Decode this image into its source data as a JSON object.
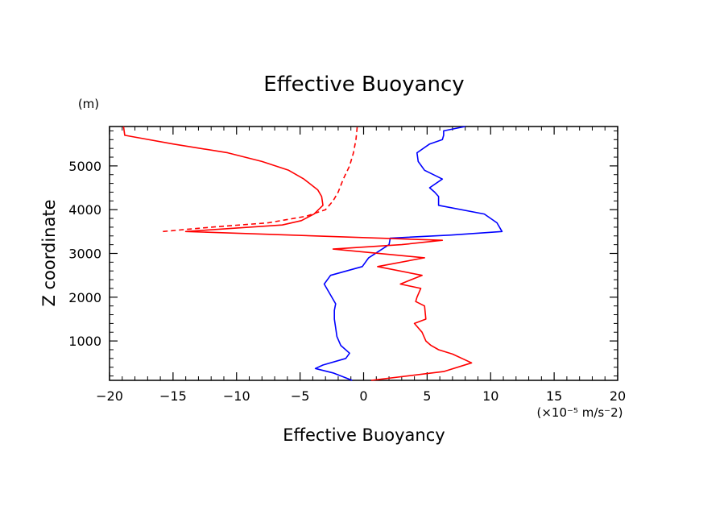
{
  "chart_data": {
    "type": "line",
    "title": "Effective Buoyancy",
    "xlabel": "Effective Buoyancy",
    "ylabel": "Z coordinate",
    "x_unit": "(×10⁻⁵ m/s⁻2)",
    "y_unit": "(m)",
    "xlim": [
      -20,
      20
    ],
    "ylim": [
      100,
      5900
    ],
    "x_ticks": [
      -20,
      -15,
      -10,
      -5,
      0,
      5,
      10,
      15,
      20
    ],
    "x_tick_labels": [
      "−20",
      "−15",
      "−10",
      "−5",
      "0",
      "5",
      "10",
      "15",
      "20"
    ],
    "y_ticks": [
      1000,
      2000,
      3000,
      4000,
      5000
    ],
    "y_tick_labels": [
      "1000",
      "2000",
      "3000",
      "4000",
      "5000"
    ],
    "grid": false,
    "series": [
      {
        "color": "#0000ff",
        "dash": "solid",
        "points": [
          [
            -0.9,
            100
          ],
          [
            -2.4,
            270
          ],
          [
            -3.8,
            370
          ],
          [
            -3.2,
            450
          ],
          [
            -1.4,
            600
          ],
          [
            -1.1,
            720
          ],
          [
            -1.8,
            900
          ],
          [
            -2.1,
            1100
          ],
          [
            -2.2,
            1300
          ],
          [
            -2.3,
            1500
          ],
          [
            -2.3,
            1700
          ],
          [
            -2.2,
            1850
          ],
          [
            -3.1,
            2300
          ],
          [
            -2.6,
            2500
          ],
          [
            -0.1,
            2700
          ],
          [
            0.4,
            2900
          ],
          [
            2.0,
            3200
          ],
          [
            2.1,
            3350
          ],
          [
            6.9,
            3420
          ],
          [
            10.9,
            3500
          ],
          [
            10.5,
            3700
          ],
          [
            9.5,
            3900
          ],
          [
            5.9,
            4100
          ],
          [
            5.9,
            4300
          ],
          [
            5.6,
            4400
          ],
          [
            5.2,
            4500
          ],
          [
            6.2,
            4700
          ],
          [
            4.8,
            4900
          ],
          [
            4.3,
            5100
          ],
          [
            4.2,
            5300
          ],
          [
            5.2,
            5500
          ],
          [
            6.2,
            5600
          ],
          [
            6.3,
            5700
          ],
          [
            6.3,
            5800
          ],
          [
            8.0,
            5900
          ]
        ]
      },
      {
        "color": "#ff0000",
        "dash": "solid",
        "points": [
          [
            0.6,
            100
          ],
          [
            6.3,
            300
          ],
          [
            8.5,
            500
          ],
          [
            7.0,
            700
          ],
          [
            5.9,
            800
          ],
          [
            5.3,
            900
          ],
          [
            4.9,
            1000
          ],
          [
            4.6,
            1200
          ],
          [
            4.0,
            1400
          ],
          [
            4.9,
            1500
          ],
          [
            4.8,
            1800
          ],
          [
            4.1,
            1900
          ],
          [
            4.2,
            2000
          ],
          [
            4.5,
            2200
          ],
          [
            2.9,
            2300
          ],
          [
            4.6,
            2500
          ],
          [
            1.1,
            2700
          ],
          [
            4.8,
            2900
          ],
          [
            -2.4,
            3100
          ],
          [
            3.0,
            3200
          ],
          [
            6.2,
            3300
          ],
          [
            -14.0,
            3500
          ],
          [
            -6.4,
            3650
          ],
          [
            -4.9,
            3750
          ],
          [
            -3.9,
            3900
          ],
          [
            -3.2,
            4100
          ],
          [
            -3.3,
            4300
          ],
          [
            -3.6,
            4450
          ],
          [
            -4.7,
            4700
          ],
          [
            -5.9,
            4900
          ],
          [
            -8.0,
            5100
          ],
          [
            -10.7,
            5300
          ],
          [
            -15.0,
            5500
          ],
          [
            -18.8,
            5700
          ],
          [
            -18.9,
            5900
          ]
        ]
      },
      {
        "color": "#ff0000",
        "dash": "dashed",
        "points": [
          [
            -15.8,
            3500
          ],
          [
            -12.0,
            3600
          ],
          [
            -7.5,
            3700
          ],
          [
            -4.5,
            3850
          ],
          [
            -3.0,
            4000
          ],
          [
            -2.4,
            4200
          ],
          [
            -2.0,
            4400
          ],
          [
            -1.6,
            4700
          ],
          [
            -1.1,
            5000
          ],
          [
            -0.8,
            5300
          ],
          [
            -0.6,
            5600
          ],
          [
            -0.5,
            5900
          ]
        ]
      }
    ]
  }
}
